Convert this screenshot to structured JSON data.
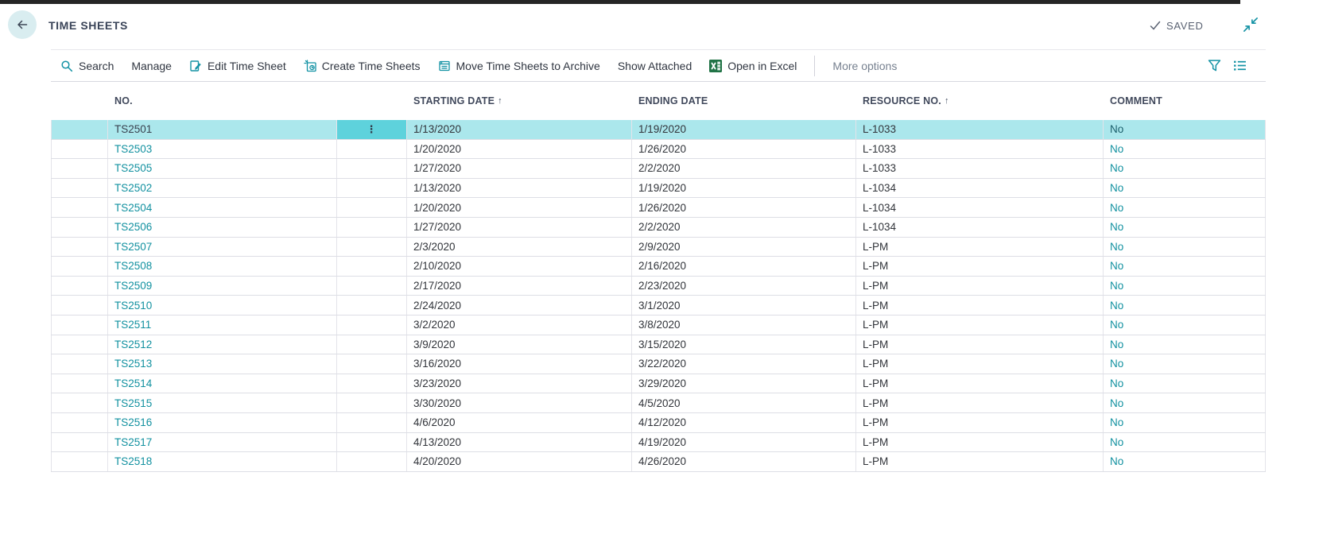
{
  "header": {
    "title": "TIME SHEETS",
    "back_icon": "arrow-left-icon",
    "saved_label": "SAVED",
    "saved_icon": "check-icon",
    "collapse_icon": "collapse-window-icon"
  },
  "toolbar": {
    "items": [
      {
        "label": "Search",
        "icon": "search-icon"
      },
      {
        "label": "Manage",
        "icon": null
      },
      {
        "label": "Edit Time Sheet",
        "icon": "edit-icon"
      },
      {
        "label": "Create Time Sheets",
        "icon": "create-time-sheets-icon"
      },
      {
        "label": "Move Time Sheets to Archive",
        "icon": "archive-icon"
      },
      {
        "label": "Show Attached",
        "icon": null
      },
      {
        "label": "Open in Excel",
        "icon": "excel-icon"
      },
      {
        "divider": true
      },
      {
        "label": "More options",
        "icon": null,
        "muted": true
      }
    ],
    "right_icons": [
      {
        "name": "filter-icon"
      },
      {
        "name": "list-view-icon"
      }
    ]
  },
  "table": {
    "sort_asc_glyph": "↑",
    "row_action_glyph": "⋮",
    "columns": [
      {
        "key": "no",
        "label": "NO.",
        "sorted": false
      },
      {
        "key": "starting_date",
        "label": "STARTING DATE",
        "sorted": true
      },
      {
        "key": "ending_date",
        "label": "ENDING DATE",
        "sorted": false
      },
      {
        "key": "resource_no",
        "label": "RESOURCE NO.",
        "sorted": true
      },
      {
        "key": "comment",
        "label": "COMMENT",
        "sorted": false
      }
    ],
    "rows": [
      {
        "no": "TS2501",
        "starting_date": "1/13/2020",
        "ending_date": "1/19/2020",
        "resource_no": "L-1033",
        "comment": "No",
        "selected": true
      },
      {
        "no": "TS2503",
        "starting_date": "1/20/2020",
        "ending_date": "1/26/2020",
        "resource_no": "L-1033",
        "comment": "No",
        "selected": false
      },
      {
        "no": "TS2505",
        "starting_date": "1/27/2020",
        "ending_date": "2/2/2020",
        "resource_no": "L-1033",
        "comment": "No",
        "selected": false
      },
      {
        "no": "TS2502",
        "starting_date": "1/13/2020",
        "ending_date": "1/19/2020",
        "resource_no": "L-1034",
        "comment": "No",
        "selected": false
      },
      {
        "no": "TS2504",
        "starting_date": "1/20/2020",
        "ending_date": "1/26/2020",
        "resource_no": "L-1034",
        "comment": "No",
        "selected": false
      },
      {
        "no": "TS2506",
        "starting_date": "1/27/2020",
        "ending_date": "2/2/2020",
        "resource_no": "L-1034",
        "comment": "No",
        "selected": false
      },
      {
        "no": "TS2507",
        "starting_date": "2/3/2020",
        "ending_date": "2/9/2020",
        "resource_no": "L-PM",
        "comment": "No",
        "selected": false
      },
      {
        "no": "TS2508",
        "starting_date": "2/10/2020",
        "ending_date": "2/16/2020",
        "resource_no": "L-PM",
        "comment": "No",
        "selected": false
      },
      {
        "no": "TS2509",
        "starting_date": "2/17/2020",
        "ending_date": "2/23/2020",
        "resource_no": "L-PM",
        "comment": "No",
        "selected": false
      },
      {
        "no": "TS2510",
        "starting_date": "2/24/2020",
        "ending_date": "3/1/2020",
        "resource_no": "L-PM",
        "comment": "No",
        "selected": false
      },
      {
        "no": "TS2511",
        "starting_date": "3/2/2020",
        "ending_date": "3/8/2020",
        "resource_no": "L-PM",
        "comment": "No",
        "selected": false
      },
      {
        "no": "TS2512",
        "starting_date": "3/9/2020",
        "ending_date": "3/15/2020",
        "resource_no": "L-PM",
        "comment": "No",
        "selected": false
      },
      {
        "no": "TS2513",
        "starting_date": "3/16/2020",
        "ending_date": "3/22/2020",
        "resource_no": "L-PM",
        "comment": "No",
        "selected": false
      },
      {
        "no": "TS2514",
        "starting_date": "3/23/2020",
        "ending_date": "3/29/2020",
        "resource_no": "L-PM",
        "comment": "No",
        "selected": false
      },
      {
        "no": "TS2515",
        "starting_date": "3/30/2020",
        "ending_date": "4/5/2020",
        "resource_no": "L-PM",
        "comment": "No",
        "selected": false
      },
      {
        "no": "TS2516",
        "starting_date": "4/6/2020",
        "ending_date": "4/12/2020",
        "resource_no": "L-PM",
        "comment": "No",
        "selected": false
      },
      {
        "no": "TS2517",
        "starting_date": "4/13/2020",
        "ending_date": "4/19/2020",
        "resource_no": "L-PM",
        "comment": "No",
        "selected": false
      },
      {
        "no": "TS2518",
        "starting_date": "4/20/2020",
        "ending_date": "4/26/2020",
        "resource_no": "L-PM",
        "comment": "No",
        "selected": false
      }
    ]
  },
  "colors": {
    "accent_teal": "#1392a4",
    "link_teal": "#1291a0",
    "selected_row_bg": "#abe7ec",
    "selected_action_bg": "#5ed2dc",
    "title_text": "#3a4458",
    "header_text": "#41495c",
    "body_text": "#31343a",
    "excel_green": "#217346",
    "topbar": "#262626"
  }
}
